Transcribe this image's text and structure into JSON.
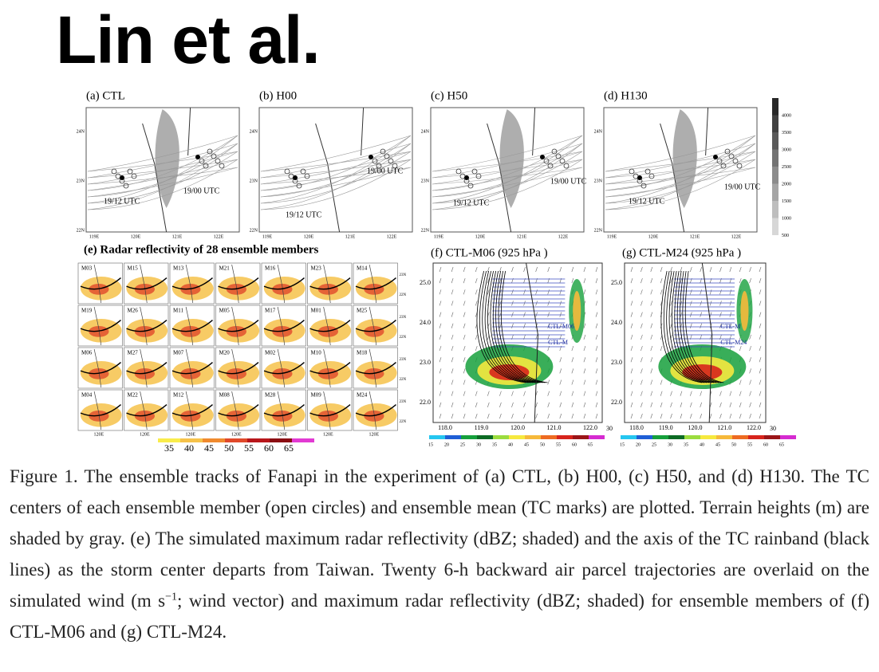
{
  "title": "Lin et al.",
  "figure": {
    "track_panels": [
      {
        "label": "(a) CTL",
        "annotations": [
          "19/00 UTC",
          "19/12 UTC"
        ],
        "xticks": [
          "119E",
          "120E",
          "121E",
          "122E"
        ],
        "yticks": [
          "24N",
          "23N",
          "22N"
        ]
      },
      {
        "label": "(b) H00",
        "annotations": [
          "19/00 UTC",
          "19/12 UTC"
        ],
        "xticks": [
          "119E",
          "120E",
          "121E",
          "122E"
        ],
        "yticks": [
          "24N",
          "23N",
          "22N"
        ]
      },
      {
        "label": "(c) H50",
        "annotations": [
          "19/00 UTC",
          "19/12 UTC"
        ],
        "xticks": [
          "119E",
          "120E",
          "121E",
          "122E"
        ],
        "yticks": [
          "24N",
          "23N",
          "22N"
        ]
      },
      {
        "label": "(d) H130",
        "annotations": [
          "19/00 UTC",
          "19/12 UTC"
        ],
        "xticks": [
          "119E",
          "120E",
          "121E",
          "122E"
        ],
        "yticks": [
          "24N",
          "23N",
          "22N"
        ]
      }
    ],
    "terrain_colorbar": [
      "4000",
      "3500",
      "3000",
      "2500",
      "2000",
      "1500",
      "1000",
      "500"
    ],
    "ensemble_panel": {
      "label": "(e) Radar reflectivity  of 28 ensemble members",
      "members": [
        "M03",
        "M15",
        "M13",
        "M21",
        "M16",
        "M23",
        "M14",
        "M19",
        "M26",
        "M11",
        "M05",
        "M17",
        "M01",
        "M25",
        "M06",
        "M27",
        "M07",
        "M20",
        "M02",
        "M10",
        "M18",
        "M04",
        "M22",
        "M12",
        "M08",
        "M28",
        "M09",
        "M24"
      ],
      "xtick": "120E",
      "yticks": [
        "23N",
        "22N"
      ],
      "colorbar": [
        "35",
        "40",
        "45",
        "50",
        "55",
        "60",
        "65"
      ]
    },
    "wind_panels": [
      {
        "label": "(f) CTL-M06  (925 hPa )",
        "member_labels": [
          "CTL-M06",
          "CTL-M"
        ],
        "yticks": [
          "25.0",
          "24.0",
          "23.0",
          "22.0"
        ],
        "xticks": [
          "118.0",
          "119.0",
          "120.0",
          "121.0",
          "122.0"
        ],
        "vector_scale": "30"
      },
      {
        "label": "(g) CTL-M24  (925 hPa )",
        "member_labels": [
          "CTL-M",
          "CTL-M24"
        ],
        "yticks": [
          "25.0",
          "24.0",
          "23.0",
          "22.0"
        ],
        "xticks": [
          "118.0",
          "119.0",
          "120.0",
          "121.0",
          "122.0"
        ],
        "vector_scale": "30"
      }
    ],
    "wind_colorbar": [
      "15",
      "20",
      "25",
      "30",
      "35",
      "40",
      "45",
      "50",
      "55",
      "60",
      "65"
    ]
  },
  "caption": {
    "before": "Figure 1. The ensemble tracks of Fanapi in the experiment of (a) CTL, (b) H00, (c) H50, and (d) H130. The TC centers of each ensemble member (open circles) and ensemble mean (TC marks) are plotted. Terrain heights (m) are shaded by gray. (e) The simulated maximum radar reflectivity (dBZ; shaded) and the axis of the TC rainband (black lines) as the storm center departs from Taiwan. Twenty 6-h backward air parcel trajectories are overlaid on the simulated wind (m s",
    "superscript": "−1",
    "after": "; wind vector) and maximum radar reflectivity (dBZ; shaded) for ensemble members of (f) CTL-M06 and (g) CTL-M24."
  }
}
